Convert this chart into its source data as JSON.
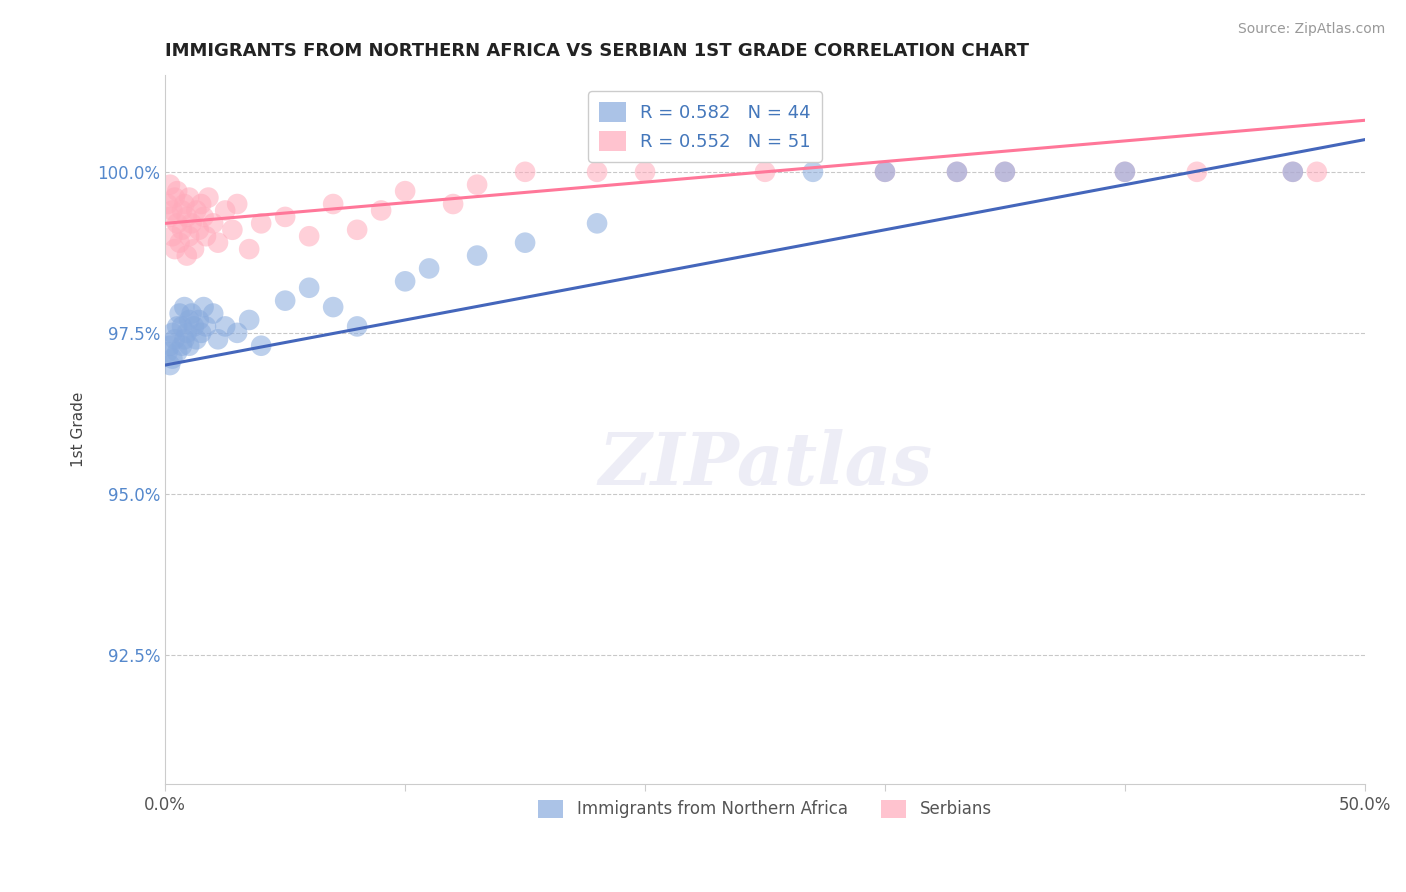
{
  "title": "IMMIGRANTS FROM NORTHERN AFRICA VS SERBIAN 1ST GRADE CORRELATION CHART",
  "source": "Source: ZipAtlas.com",
  "ylabel": "1st Grade",
  "xlim": [
    0.0,
    50.0
  ],
  "ylim": [
    90.5,
    101.5
  ],
  "xticks": [
    0.0,
    10.0,
    20.0,
    30.0,
    40.0,
    50.0
  ],
  "xticklabels": [
    "0.0%",
    "",
    "",
    "",
    "",
    "50.0%"
  ],
  "yticks": [
    92.5,
    95.0,
    97.5,
    100.0
  ],
  "yticklabels": [
    "92.5%",
    "95.0%",
    "97.5%",
    "100.0%"
  ],
  "legend1_label": "R = 0.582   N = 44",
  "legend2_label": "R = 0.552   N = 51",
  "legend_bottom_label1": "Immigrants from Northern Africa",
  "legend_bottom_label2": "Serbians",
  "blue_color": "#88AADD",
  "pink_color": "#FFAABB",
  "blue_line_color": "#4466BB",
  "pink_line_color": "#FF7799",
  "blue_scatter_x": [
    0.1,
    0.2,
    0.2,
    0.3,
    0.3,
    0.4,
    0.5,
    0.5,
    0.6,
    0.7,
    0.7,
    0.8,
    0.8,
    0.9,
    1.0,
    1.0,
    1.1,
    1.2,
    1.3,
    1.4,
    1.5,
    1.6,
    1.7,
    2.0,
    2.2,
    2.5,
    3.0,
    3.5,
    4.0,
    5.0,
    6.0,
    7.0,
    8.0,
    10.0,
    11.0,
    13.0,
    15.0,
    18.0,
    27.0,
    30.0,
    33.0,
    35.0,
    40.0,
    47.0
  ],
  "blue_scatter_y": [
    97.2,
    97.0,
    97.3,
    97.1,
    97.5,
    97.4,
    97.6,
    97.2,
    97.8,
    97.3,
    97.6,
    97.4,
    97.9,
    97.5,
    97.7,
    97.3,
    97.8,
    97.6,
    97.4,
    97.7,
    97.5,
    97.9,
    97.6,
    97.8,
    97.4,
    97.6,
    97.5,
    97.7,
    97.3,
    98.0,
    98.2,
    97.9,
    97.6,
    98.3,
    98.5,
    98.7,
    98.9,
    99.2,
    100.0,
    100.0,
    100.0,
    100.0,
    100.0,
    100.0
  ],
  "pink_scatter_x": [
    0.1,
    0.2,
    0.2,
    0.3,
    0.3,
    0.4,
    0.4,
    0.5,
    0.5,
    0.6,
    0.7,
    0.7,
    0.8,
    0.9,
    0.9,
    1.0,
    1.0,
    1.1,
    1.2,
    1.3,
    1.4,
    1.5,
    1.6,
    1.7,
    1.8,
    2.0,
    2.2,
    2.5,
    2.8,
    3.0,
    3.5,
    4.0,
    5.0,
    6.0,
    7.0,
    8.0,
    9.0,
    10.0,
    12.0,
    13.0,
    15.0,
    18.0,
    20.0,
    25.0,
    30.0,
    33.0,
    35.0,
    40.0,
    43.0,
    47.0,
    48.0
  ],
  "pink_scatter_y": [
    99.5,
    99.3,
    99.8,
    99.0,
    99.4,
    99.6,
    98.8,
    99.2,
    99.7,
    98.9,
    99.4,
    99.1,
    99.5,
    99.3,
    98.7,
    99.0,
    99.6,
    99.2,
    98.8,
    99.4,
    99.1,
    99.5,
    99.3,
    99.0,
    99.6,
    99.2,
    98.9,
    99.4,
    99.1,
    99.5,
    98.8,
    99.2,
    99.3,
    99.0,
    99.5,
    99.1,
    99.4,
    99.7,
    99.5,
    99.8,
    100.0,
    100.0,
    100.0,
    100.0,
    100.0,
    100.0,
    100.0,
    100.0,
    100.0,
    100.0,
    100.0
  ],
  "blue_line_x0": 0.0,
  "blue_line_y0": 97.0,
  "blue_line_x1": 50.0,
  "blue_line_y1": 100.5,
  "pink_line_x0": 0.0,
  "pink_line_y0": 99.2,
  "pink_line_x1": 50.0,
  "pink_line_y1": 100.8
}
